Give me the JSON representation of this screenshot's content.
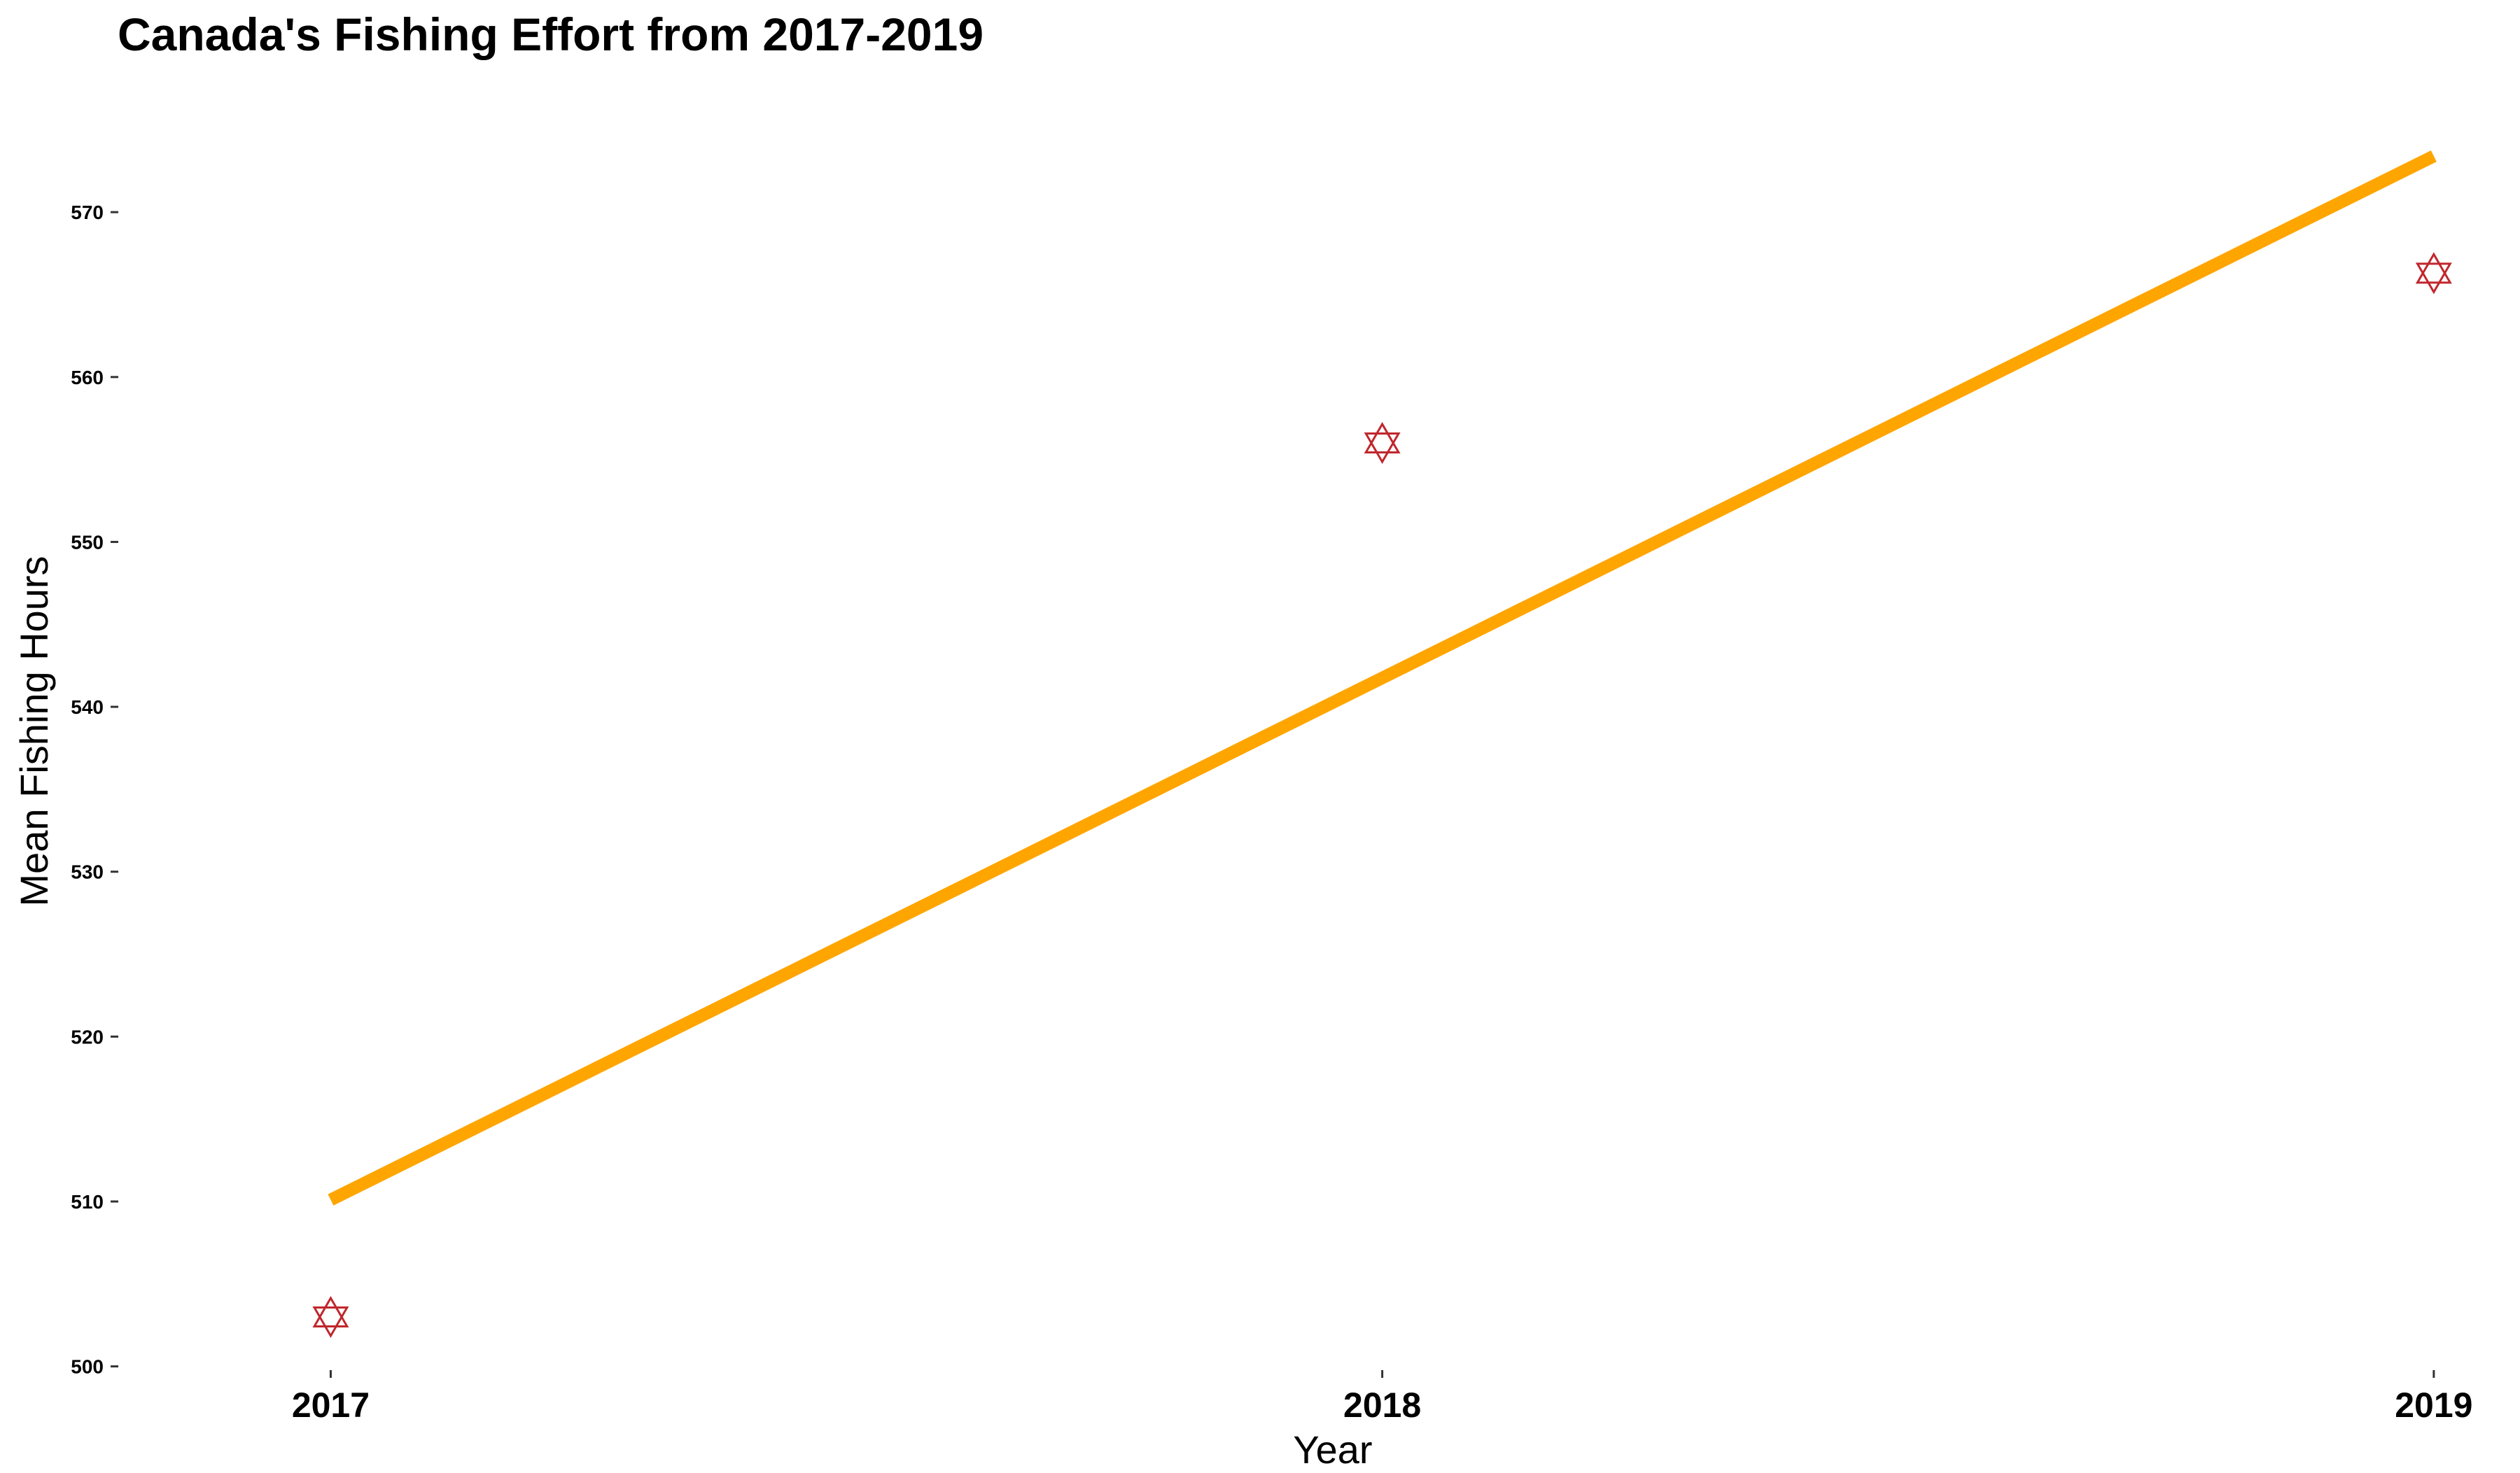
{
  "chart_data": {
    "type": "scatter",
    "title": "Canada's Fishing Effort from 2017-2019",
    "xlabel": "Year",
    "ylabel": "Mean Fishing Hours",
    "x_ticks": [
      "2017",
      "2018",
      "2019"
    ],
    "y_ticks": [
      500,
      510,
      520,
      530,
      540,
      550,
      560,
      570
    ],
    "ylim": [
      499.9,
      576.5
    ],
    "xlim": [
      2016.8,
      2019.07
    ],
    "grid": false,
    "legend": "none",
    "points": {
      "shape": "hexagram",
      "color": "#c0272d",
      "x": [
        2017,
        2018,
        2019
      ],
      "y": [
        503,
        556,
        566.3
      ]
    },
    "trend_line": {
      "type": "linear fit",
      "color": "#ffa500",
      "x": [
        2017,
        2019
      ],
      "y": [
        510.1,
        573.4
      ]
    }
  }
}
